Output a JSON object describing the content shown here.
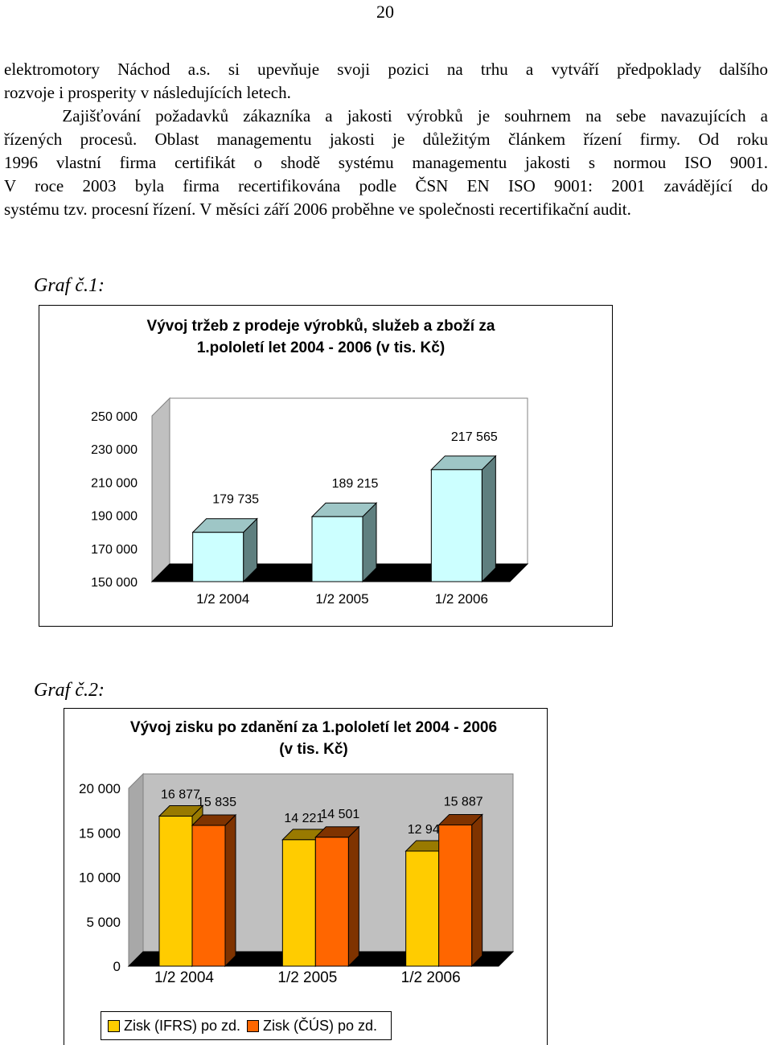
{
  "page": {
    "number": "20"
  },
  "paragraph": {
    "lines": [
      "elektromotory Náchod a.s. si upevňuje svoji pozici na trhu a vytváří předpoklady dalšího",
      "rozvoje i prosperity v následujících letech.",
      "    Zajišťování požadavků zákazníka a jakosti výrobků je souhrnem na sebe navazujících a",
      "řízených procesů. Oblast managementu jakosti je důležitým článkem řízení firmy. Od roku",
      "1996 vlastní firma certifikát o shodě systému managementu jakosti s normou ISO 9001.",
      "V roce 2003 byla firma recertifikována podle ČSN EN ISO 9001: 2001 zavádějící do",
      "systému tzv. procesní řízení. V měsíci září 2006 proběhne ve společnosti recertifikační audit."
    ]
  },
  "captions": {
    "chart1": "Graf č.1:",
    "chart2": "Graf č.2:"
  },
  "chart_data": [
    {
      "type": "bar",
      "title": "Vývoj tržeb z prodeje výrobků, služeb a zboží za 1.pololetí let 2004 - 2006 (v tis. Kč)",
      "title_lines": [
        "Vývoj tržeb z prodeje výrobků, služeb a zboží za",
        "1.pololetí let 2004 - 2006 (v tis. Kč)"
      ],
      "categories": [
        "1/2 2004",
        "1/2 2005",
        "1/2 2006"
      ],
      "values": [
        179735,
        189215,
        217565
      ],
      "data_labels": [
        "179 735",
        "189 215",
        "217 565"
      ],
      "ylim": [
        150000,
        250000
      ],
      "yticks": [
        250000,
        230000,
        210000,
        190000,
        170000,
        150000
      ],
      "ytick_labels": [
        "250 000",
        "230 000",
        "210 000",
        "190 000",
        "170 000",
        "150 000"
      ],
      "bar_color": "#CCFFFF",
      "bar_side_color": "#5F7F7F",
      "grid": false,
      "legend": "none",
      "style": "3d"
    },
    {
      "type": "bar",
      "title": "Vývoj zisku po zdanění za 1.pololetí let 2004 - 2006 (v tis. Kč)",
      "title_lines": [
        "Vývoj zisku po zdanění za 1.pololetí let 2004 - 2006",
        "(v tis. Kč)"
      ],
      "categories": [
        "1/2 2004",
        "1/2 2005",
        "1/2 2006"
      ],
      "series": [
        {
          "name": "Zisk (IFRS) po zd.",
          "values": [
            16877,
            14221,
            12945
          ],
          "labels": [
            "16 877",
            "14 221",
            "12 945"
          ],
          "color": "#FFCC00",
          "side_color": "#997A00"
        },
        {
          "name": "Zisk (ČÚS) po zd.",
          "values": [
            15835,
            14501,
            15887
          ],
          "labels": [
            "15 835",
            "14 501",
            "15 887"
          ],
          "color": "#FF6600",
          "side_color": "#7F3300"
        }
      ],
      "ylim": [
        0,
        20000
      ],
      "yticks": [
        20000,
        15000,
        10000,
        5000,
        0
      ],
      "ytick_labels": [
        "20 000",
        "15 000",
        "10 000",
        "5 000",
        "0"
      ],
      "grid": false,
      "legend": "bottom",
      "style": "3d"
    }
  ]
}
